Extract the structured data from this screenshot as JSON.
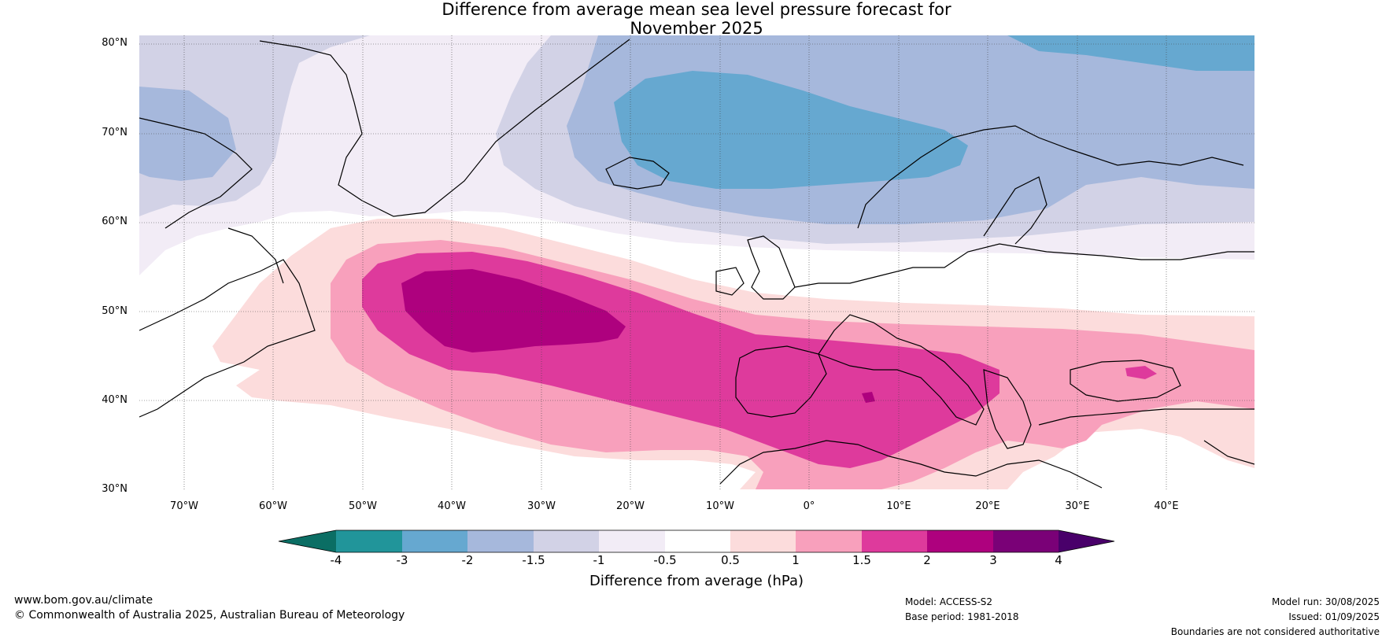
{
  "title_line1": "Difference from average mean sea level pressure forecast for",
  "title_line2": "November 2025",
  "lat_labels": [
    "80°N",
    "70°N",
    "60°N",
    "50°N",
    "40°N",
    "30°N"
  ],
  "lon_labels": [
    "70°W",
    "60°W",
    "50°W",
    "40°W",
    "30°W",
    "20°W",
    "10°W",
    "0°",
    "10°E",
    "20°E",
    "30°E",
    "40°E"
  ],
  "colorbar": {
    "ticks": [
      "-4",
      "-3",
      "-2",
      "-1.5",
      "-1",
      "-0.5",
      "0.5",
      "1",
      "1.5",
      "2",
      "3",
      "4"
    ],
    "colors": {
      "lt_-4": "#0b6e64",
      "-4_-3": "#21959a",
      "-3_-2": "#66a8d0",
      "-2_-1.5": "#a6b8dc",
      "-1.5_-1": "#d2d2e6",
      "-1_-0.5": "#f2ecf6",
      "-0.5_0.5": "#ffffff",
      "0.5_1": "#fcdcdc",
      "1_1.5": "#f8a0bc",
      "1.5_2": "#de3a9c",
      "2_3": "#ae017e",
      "3_4": "#7a0177",
      "gt_4": "#49006a"
    },
    "label": "Difference from average (hPa)"
  },
  "footer": {
    "website": "www.bom.gov.au/climate",
    "copyright": "© Commonwealth of Australia 2025, Australian Bureau of Meteorology",
    "model": "Model: ACCESS-S2",
    "base_period": "Base period: 1981-2018",
    "model_run": "Model run: 30/08/2025",
    "issued": "Issued: 01/09/2025",
    "disclaimer": "Boundaries are not considered authoritative"
  }
}
